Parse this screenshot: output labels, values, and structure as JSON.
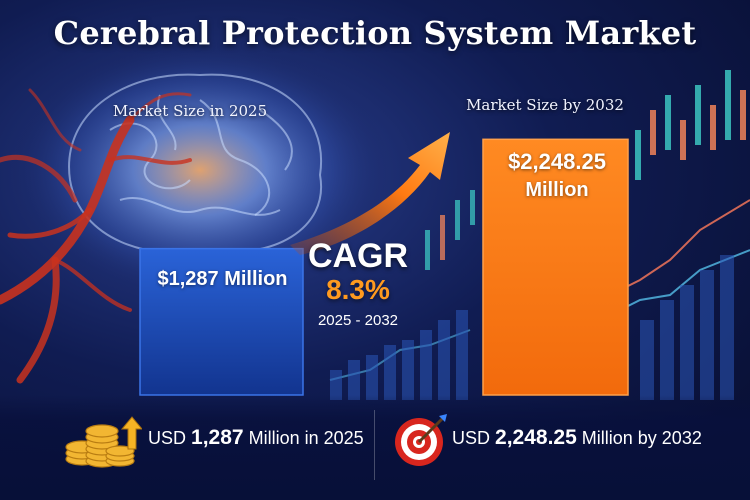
{
  "title": "Cerebral Protection System Market",
  "chart_data": {
    "type": "bar",
    "categories": [
      "2025",
      "2032"
    ],
    "values": [
      1287,
      2248.25
    ],
    "unit": "Million",
    "category_labels": [
      "Market Size in 2025",
      "Market Size by 2032"
    ],
    "data_labels": [
      "$1,287 Million",
      "$2,248.25 Million"
    ],
    "colors": [
      "#1d4fc2",
      "#ff7a12"
    ],
    "ylim": [
      0,
      2550
    ]
  },
  "cagr": {
    "label": "CAGR",
    "value": "8.3%",
    "period": "2025 - 2032"
  },
  "bars": {
    "label_2025": "$1,287 Million",
    "label_2032_line1": "$2,248.25",
    "label_2032_line2": "Million"
  },
  "footer": {
    "left": {
      "prefix": "USD ",
      "value": "1,287",
      "suffix": " Million in 2025"
    },
    "right": {
      "prefix": "USD ",
      "value": "2,248.25",
      "suffix": " Million by 2032"
    }
  },
  "icons": {
    "coins": "coins-icon",
    "growth_arrow": "growth-arrow-icon",
    "target": "target-icon"
  }
}
